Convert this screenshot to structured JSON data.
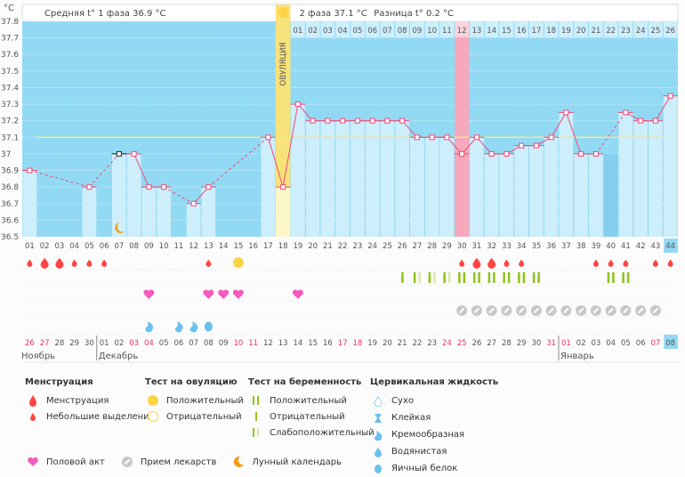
{
  "header": {
    "phase1_avg": "Средняя t° 1 фаза 36.9 °C",
    "phase2_avg": "2 фаза 37.1 °C",
    "difference": "Разница t° 0.2 °C",
    "ovulation_label": "ОВУЛЯЦИЯ",
    "unit": "°C"
  },
  "colors": {
    "background": "#92d9f3",
    "bar": "#cdeefb",
    "line": "#ee4a7a",
    "coverline": "#f2e88a",
    "ovulation": "#f8e27a",
    "highlight_phase2_day": "#f8a8bc",
    "weekend": "#ee3366"
  },
  "chart_data": {
    "type": "bar",
    "ylabel": "°C",
    "ylim": [
      36.5,
      37.8
    ],
    "yticks": [
      "36.5",
      "36.6",
      "36.7",
      "36.8",
      "36.9",
      "37",
      "37.1",
      "37.2",
      "37.3",
      "37.4",
      "37.5",
      "37.6",
      "37.7",
      "37.8"
    ],
    "cycle_days": [
      "01",
      "02",
      "03",
      "04",
      "05",
      "06",
      "07",
      "08",
      "09",
      "10",
      "11",
      "12",
      "13",
      "14",
      "15",
      "16",
      "17",
      "18",
      "19",
      "20",
      "21",
      "22",
      "23",
      "24",
      "25",
      "26",
      "27",
      "28",
      "29",
      "30",
      "31",
      "32",
      "33",
      "34",
      "35",
      "36",
      "37",
      "38",
      "39",
      "40",
      "41",
      "42",
      "43",
      "44"
    ],
    "temperatures": [
      36.9,
      null,
      null,
      null,
      36.8,
      null,
      37.0,
      37.0,
      36.8,
      36.8,
      null,
      36.7,
      36.8,
      null,
      null,
      null,
      37.1,
      36.8,
      37.3,
      37.2,
      37.2,
      37.2,
      37.2,
      37.2,
      37.2,
      37.2,
      37.1,
      37.1,
      37.1,
      37.0,
      37.1,
      37.0,
      37.0,
      37.05,
      37.05,
      37.1,
      37.25,
      37.0,
      37.0,
      null,
      37.25,
      37.2,
      37.2,
      37.35
    ],
    "coverline": 37.1,
    "ovulation_day": 18,
    "phase2_days": [
      "01",
      "02",
      "03",
      "04",
      "05",
      "06",
      "07",
      "08",
      "09",
      "10",
      "11",
      "12",
      "13",
      "14",
      "15",
      "16",
      "17",
      "18",
      "19",
      "20",
      "21",
      "22",
      "23",
      "24",
      "25",
      "26"
    ],
    "highlighted_phase2_day": "12",
    "current_day": "44",
    "moon_day": 7
  },
  "rows": {
    "menstruation": {
      "1": "small",
      "2": "big",
      "3": "big",
      "4": "small",
      "5": "small",
      "6": "small",
      "13": "small",
      "30": "small",
      "31": "big",
      "32": "big",
      "33": "small",
      "34": "small",
      "39": "small",
      "40": "small",
      "41": "small",
      "43": "small",
      "44": "small"
    },
    "ovulation_test": {
      "15": "positive"
    },
    "pregnancy_test": {
      "26": "negative",
      "27": "weak",
      "28": "weak",
      "29": "weak",
      "30": "positive",
      "31": "positive",
      "32": "positive",
      "33": "positive",
      "34": "positive",
      "35": "positive",
      "40": "positive",
      "41": "positive"
    },
    "intercourse": [
      9,
      13,
      14,
      15,
      19
    ],
    "medication": [
      30,
      31,
      32,
      33,
      34,
      35,
      36,
      37,
      38,
      39,
      40,
      41,
      42,
      43
    ],
    "cervical": {
      "9": "creamy",
      "11": "creamy",
      "12": "creamy",
      "13": "eggwhite"
    }
  },
  "dates": [
    "26",
    "27",
    "28",
    "29",
    "30",
    "01",
    "02",
    "03",
    "04",
    "05",
    "06",
    "07",
    "08",
    "09",
    "10",
    "11",
    "12",
    "13",
    "14",
    "15",
    "16",
    "17",
    "18",
    "19",
    "20",
    "21",
    "22",
    "23",
    "24",
    "25",
    "26",
    "27",
    "28",
    "29",
    "30",
    "31",
    "01",
    "02",
    "03",
    "04",
    "05",
    "06",
    "07",
    "08"
  ],
  "weekend_days": [
    1,
    2,
    8,
    9,
    15,
    16,
    22,
    23,
    29,
    30,
    36,
    37,
    43
  ],
  "months": [
    {
      "label": "Ноябрь",
      "day": 1
    },
    {
      "label": "Декабрь",
      "day": 6
    },
    {
      "label": "Январь",
      "day": 37
    }
  ],
  "legend": {
    "menstruation": {
      "title": "Менструация",
      "items": [
        "Менструация",
        "Небольшие выделения"
      ]
    },
    "ovulation_test": {
      "title": "Тест на овуляцию",
      "items": [
        "Положительный",
        "Отрицательный"
      ]
    },
    "pregnancy_test": {
      "title": "Тест на беременность",
      "items": [
        "Положительный",
        "Отрицательный",
        "Слабоположительный"
      ]
    },
    "cervical": {
      "title": "Цервикальная жидкость",
      "items": [
        "Сухо",
        "Клейкая",
        "Кремообразная",
        "Водянистая",
        "Яичный белок"
      ]
    },
    "other": [
      "Половой акт",
      "Прием лекарств",
      "Лунный календарь"
    ]
  }
}
